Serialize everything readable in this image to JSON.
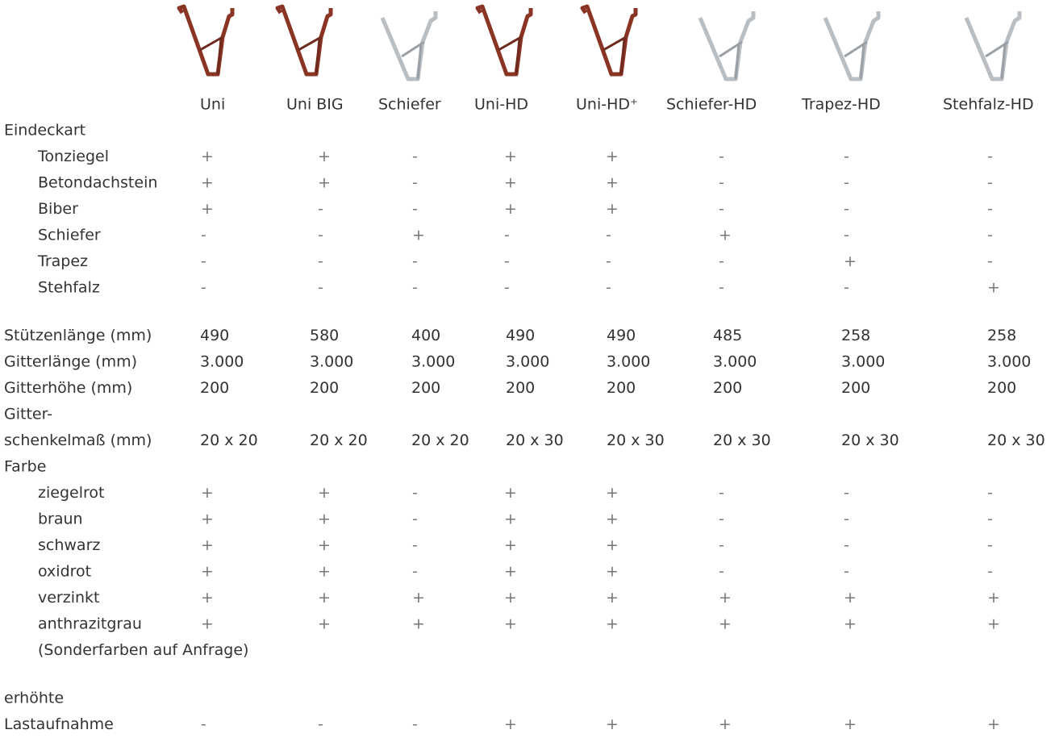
{
  "table": {
    "columns": [
      "Uni",
      "Uni BIG",
      "Schiefer",
      "Uni-HD",
      "Uni-HD⁺",
      "Schiefer-HD",
      "Trapez-HD",
      "Stehfalz-HD"
    ],
    "sections": [
      {
        "heading": "Eindeckart",
        "rows": [
          {
            "label": [
              "Tonziegel"
            ],
            "cells": [
              "+",
              "+",
              "-",
              "+",
              "+",
              "-",
              "-",
              "-"
            ]
          },
          {
            "label": [
              "Betondachstein"
            ],
            "cells": [
              "+",
              "+",
              "-",
              "+",
              "+",
              "-",
              "-",
              "-"
            ]
          },
          {
            "label": [
              "Biber"
            ],
            "cells": [
              "+",
              "-",
              "-",
              "+",
              "+",
              "-",
              "-",
              "-"
            ]
          },
          {
            "label": [
              "Schiefer"
            ],
            "cells": [
              "-",
              "-",
              "+",
              "-",
              "-",
              "+",
              "-",
              "-"
            ]
          },
          {
            "label": [
              "Trapez"
            ],
            "cells": [
              "-",
              "-",
              "-",
              "-",
              "-",
              "-",
              "+",
              "-"
            ]
          },
          {
            "label": [
              "Stehfalz"
            ],
            "cells": [
              "-",
              "-",
              "-",
              "-",
              "-",
              "-",
              "-",
              "+"
            ]
          }
        ]
      },
      {
        "rows": [
          {
            "label": [
              "Stützenlänge (mm)"
            ],
            "cells": [
              "490",
              "580",
              "400",
              "490",
              "490",
              "485",
              "258",
              "258"
            ]
          },
          {
            "label": [
              "Gitterlänge (mm)"
            ],
            "cells": [
              "3.000",
              "3.000",
              "3.000",
              "3.000",
              "3.000",
              "3.000",
              "3.000",
              "3.000"
            ]
          },
          {
            "label": [
              "Gitterhöhe (mm)"
            ],
            "cells": [
              "200",
              "200",
              "200",
              "200",
              "200",
              "200",
              "200",
              "200"
            ]
          },
          {
            "label": [
              "Gitter-",
              "schenkelmaß (mm)"
            ],
            "cells": [
              "20 x 20",
              "20 x 20",
              "20 x 20",
              "20 x 30",
              "20 x 30",
              "20 x 30",
              "20 x 30",
              "20 x 30"
            ]
          }
        ]
      },
      {
        "heading": "Farbe",
        "rows": [
          {
            "label": [
              "ziegelrot"
            ],
            "cells": [
              "+",
              "+",
              "-",
              "+",
              "+",
              "-",
              "-",
              "-"
            ]
          },
          {
            "label": [
              "braun"
            ],
            "cells": [
              "+",
              "+",
              "-",
              "+",
              "+",
              "-",
              "-",
              "-"
            ]
          },
          {
            "label": [
              "schwarz"
            ],
            "cells": [
              "+",
              "+",
              "-",
              "+",
              "+",
              "-",
              "-",
              "-"
            ]
          },
          {
            "label": [
              "oxidrot"
            ],
            "cells": [
              "+",
              "+",
              "-",
              "+",
              "+",
              "-",
              "-",
              "-"
            ]
          },
          {
            "label": [
              "verzinkt"
            ],
            "cells": [
              "+",
              "+",
              "+",
              "+",
              "+",
              "+",
              "+",
              "+"
            ]
          },
          {
            "label": [
              "anthrazitgrau"
            ],
            "cells": [
              "+",
              "+",
              "+",
              "+",
              "+",
              "+",
              "+",
              "+"
            ]
          }
        ],
        "note": "(Sonderfarben auf Anfrage)"
      },
      {
        "rows": [
          {
            "label": [
              "erhöhte",
              "Lastaufnahme"
            ],
            "cells": [
              "-",
              "-",
              "-",
              "+",
              "+",
              "+",
              "+",
              "+"
            ]
          }
        ]
      }
    ]
  }
}
